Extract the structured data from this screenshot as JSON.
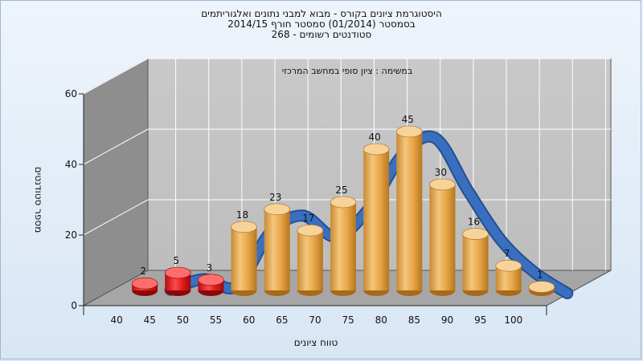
{
  "header": {
    "title_line1": "היסטוגרמת ציונים בקורס - מבוא למבני נתונים ואלגוריתמים",
    "title_line2": "בסמסטר  (01/2014)  סמסטר חורף 2014/15",
    "title_line3": "סטודנטים רשומים - 268"
  },
  "chart_data": {
    "type": "bar",
    "title": "היסטוגרמת ציונים בקורס - מבוא למבני נתונים ואלגוריתמים",
    "xlabel": "טווח ציונים",
    "ylabel": "מספר סטודנטים",
    "annotation": "במשימה : ציון סופי במחשב המרכזי",
    "categories": [
      "40",
      "45",
      "50",
      "55",
      "60",
      "65",
      "70",
      "75",
      "80",
      "85",
      "90",
      "95",
      "100"
    ],
    "values": [
      2,
      5,
      3,
      18,
      23,
      17,
      25,
      40,
      45,
      30,
      16,
      7,
      1
    ],
    "bar_colors": [
      "#e01818",
      "#e01818",
      "#e01818",
      "#e3a34b",
      "#e3a34b",
      "#e3a34b",
      "#e3a34b",
      "#e3a34b",
      "#e3a34b",
      "#e3a34b",
      "#e3a34b",
      "#e3a34b",
      "#e3a34b"
    ],
    "y_ticks": [
      0,
      20,
      40,
      60
    ],
    "ylim": [
      0,
      60
    ],
    "trend_color": "#3a6fc0",
    "grid": true,
    "wall_color": "#c3c3c3",
    "side_wall_color": "#8e8e8e",
    "floor_color": "#a6a6a6"
  }
}
